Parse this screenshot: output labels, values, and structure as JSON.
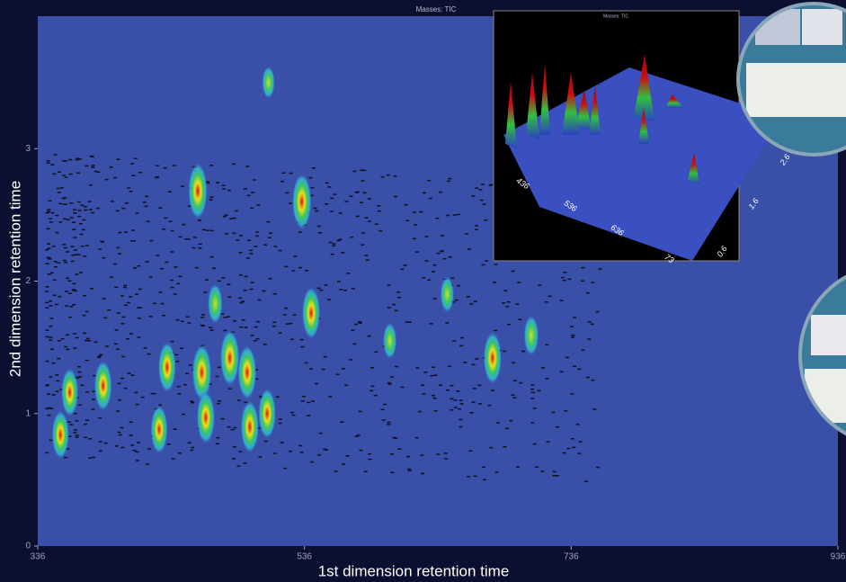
{
  "chart_data": {
    "type": "contour",
    "title": "Masses: TIC",
    "x_label": "1st dimension retention time",
    "y_label": "2nd dimension retention time",
    "xlim": [
      336,
      936
    ],
    "xticks": [
      336,
      536,
      736,
      936
    ],
    "ylim": [
      0,
      4
    ],
    "yticks": [
      0,
      1,
      2,
      3
    ],
    "x": [
      456,
      534,
      541,
      677,
      459,
      480,
      493,
      433,
      385,
      360,
      353,
      462,
      495,
      508,
      427,
      469,
      706,
      600,
      643,
      509
    ],
    "y": [
      2.68,
      2.6,
      1.76,
      1.42,
      1.31,
      1.42,
      1.31,
      1.35,
      1.21,
      1.16,
      0.84,
      0.97,
      0.9,
      1.0,
      0.88,
      1.83,
      1.59,
      1.55,
      1.9,
      3.5
    ],
    "intensity": [
      1,
      1,
      0.9,
      0.9,
      1,
      1,
      0.95,
      0.85,
      0.85,
      0.8,
      0.8,
      0.9,
      0.9,
      0.85,
      0.8,
      0.6,
      0.6,
      0.5,
      0.5,
      0.4
    ]
  },
  "inset": {
    "title": "Masses: TIC",
    "x_labels": [
      "436",
      "536",
      "636",
      "73"
    ],
    "y_labels": [
      "0.6",
      "1.6",
      "2.6"
    ]
  }
}
